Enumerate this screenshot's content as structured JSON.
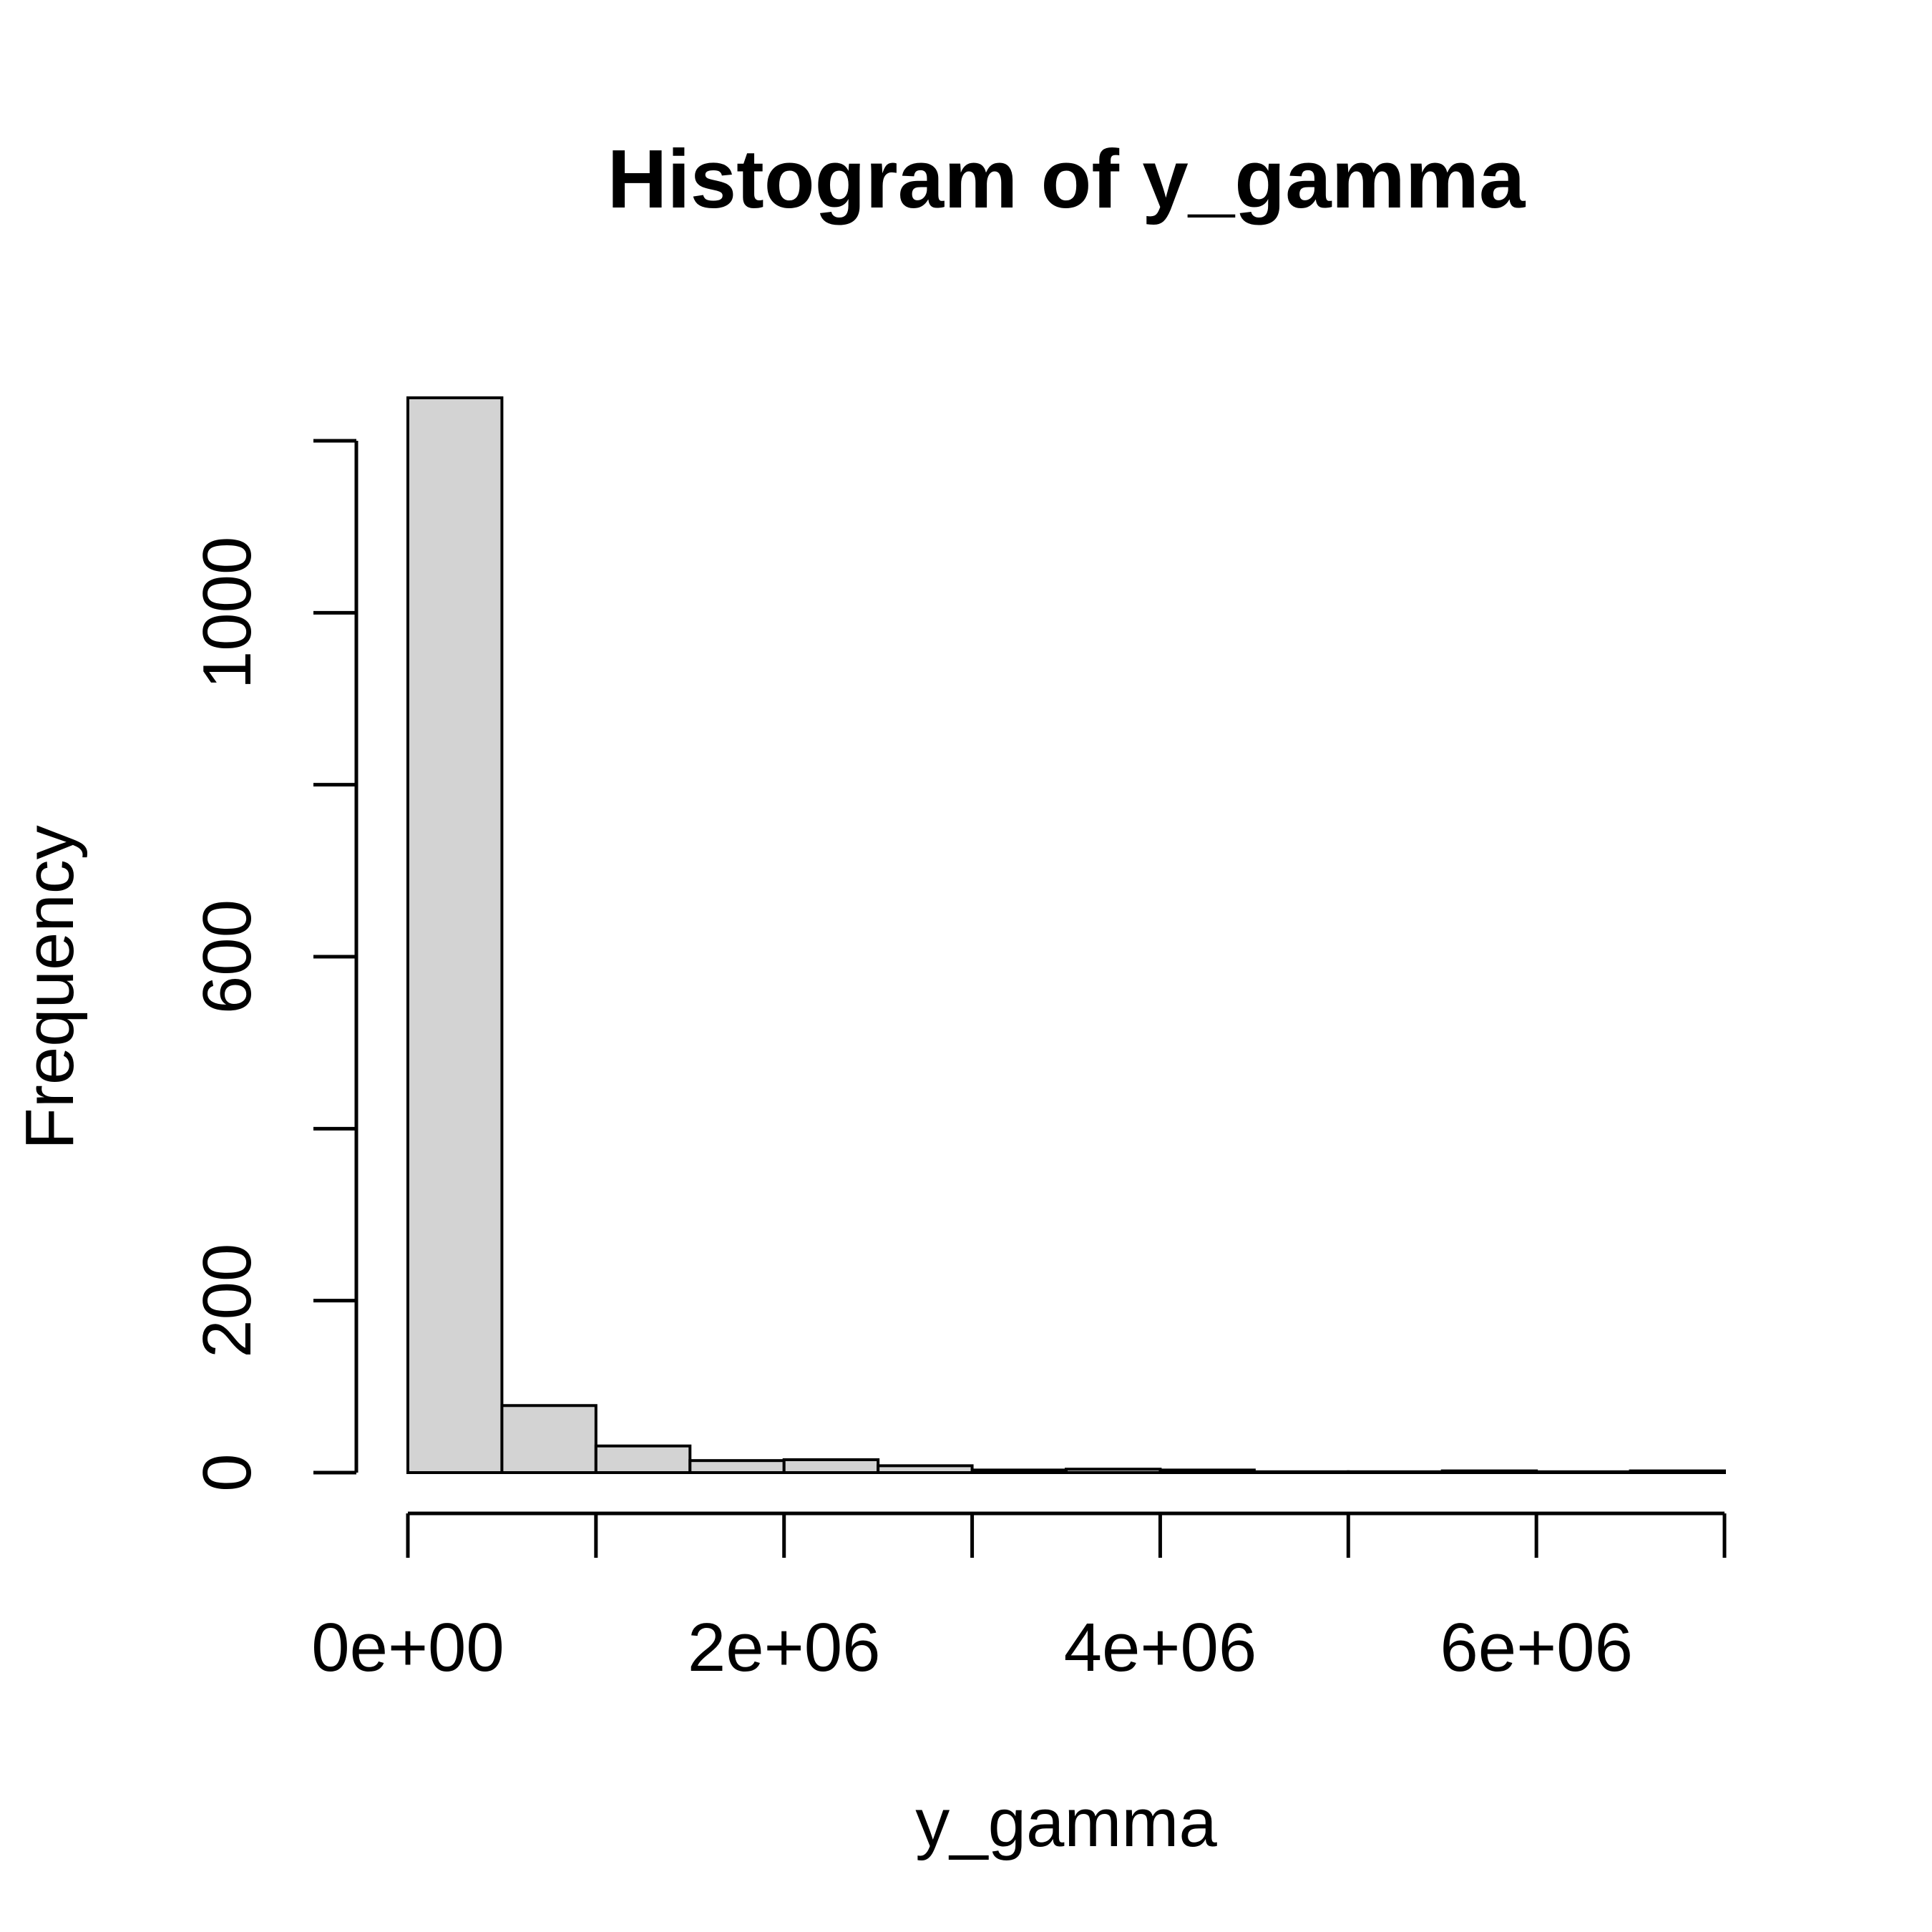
{
  "chart_data": {
    "type": "bar",
    "title": "Histogram of y_gamma",
    "xlabel": "y_gamma",
    "ylabel": "Frequency",
    "bar_color": "#d3d3d3",
    "edge_color": "#000000",
    "bin_width": 500000,
    "bins": [
      {
        "start": 0,
        "end": 500000,
        "count": 1250
      },
      {
        "start": 500000,
        "end": 1000000,
        "count": 78
      },
      {
        "start": 1000000,
        "end": 1500000,
        "count": 31
      },
      {
        "start": 1500000,
        "end": 2000000,
        "count": 14
      },
      {
        "start": 2000000,
        "end": 2500000,
        "count": 15
      },
      {
        "start": 2500000,
        "end": 3000000,
        "count": 8
      },
      {
        "start": 3000000,
        "end": 3500000,
        "count": 3
      },
      {
        "start": 3500000,
        "end": 4000000,
        "count": 4
      },
      {
        "start": 4000000,
        "end": 4500000,
        "count": 3
      },
      {
        "start": 4500000,
        "end": 5000000,
        "count": 1
      },
      {
        "start": 5000000,
        "end": 5500000,
        "count": 1
      },
      {
        "start": 5500000,
        "end": 6000000,
        "count": 2
      },
      {
        "start": 6000000,
        "end": 6500000,
        "count": 1
      },
      {
        "start": 6500000,
        "end": 7000000,
        "count": 2
      }
    ],
    "xlim": [
      0,
      7000000
    ],
    "ylim": [
      0,
      1200
    ],
    "x_ticks": [
      0,
      1000000,
      2000000,
      3000000,
      4000000,
      5000000,
      6000000,
      7000000
    ],
    "x_tick_labels": [
      {
        "value": 0,
        "label": "0e+00"
      },
      {
        "value": 2000000,
        "label": "2e+06"
      },
      {
        "value": 4000000,
        "label": "4e+06"
      },
      {
        "value": 6000000,
        "label": "6e+06"
      }
    ],
    "y_ticks": [
      0,
      200,
      400,
      600,
      800,
      1000,
      1200
    ],
    "y_tick_labels": [
      {
        "value": 0,
        "label": "0"
      },
      {
        "value": 200,
        "label": "200"
      },
      {
        "value": 600,
        "label": "600"
      },
      {
        "value": 1000,
        "label": "1000"
      }
    ]
  }
}
